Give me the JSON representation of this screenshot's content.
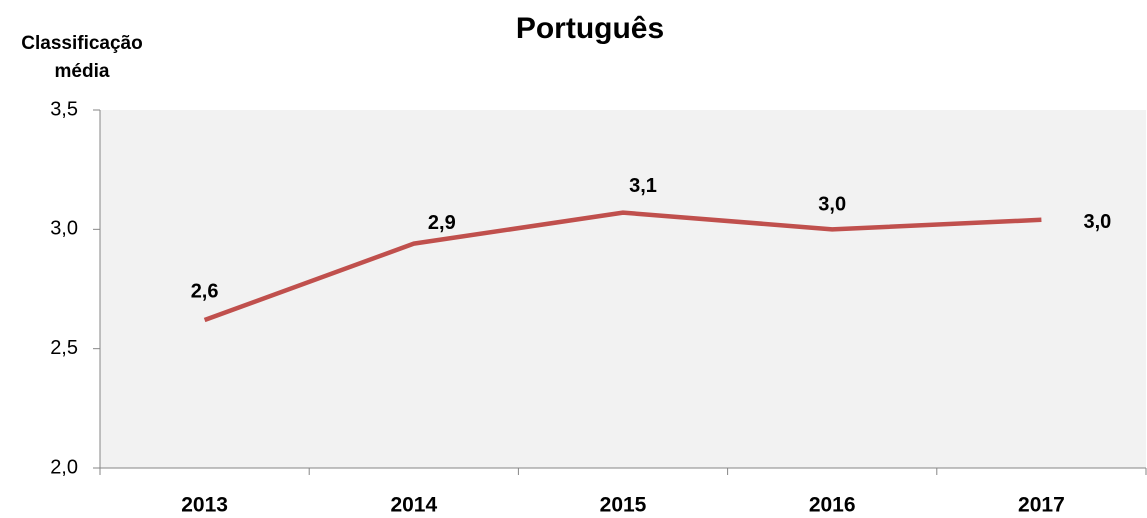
{
  "chart_data": {
    "type": "line",
    "title": "Português",
    "y_label": [
      "Classificação",
      "média"
    ],
    "categories": [
      "2013",
      "2014",
      "2015",
      "2016",
      "2017"
    ],
    "series": [
      {
        "name": "Português",
        "color": "#c0504d",
        "values": [
          2.62,
          2.94,
          3.07,
          3.0,
          3.04
        ],
        "value_labels": [
          "2,6",
          "2,9",
          "3,1",
          "3,0",
          "3,0"
        ]
      }
    ],
    "ylim": [
      2.0,
      3.5
    ],
    "yticks": [
      {
        "value": 2.0,
        "label": "2,0"
      },
      {
        "value": 2.5,
        "label": "2,5"
      },
      {
        "value": 3.0,
        "label": "3,0"
      },
      {
        "value": 3.5,
        "label": "3,5"
      }
    ],
    "grid": false,
    "legend": false,
    "plot_background": "#f2f2f2"
  }
}
